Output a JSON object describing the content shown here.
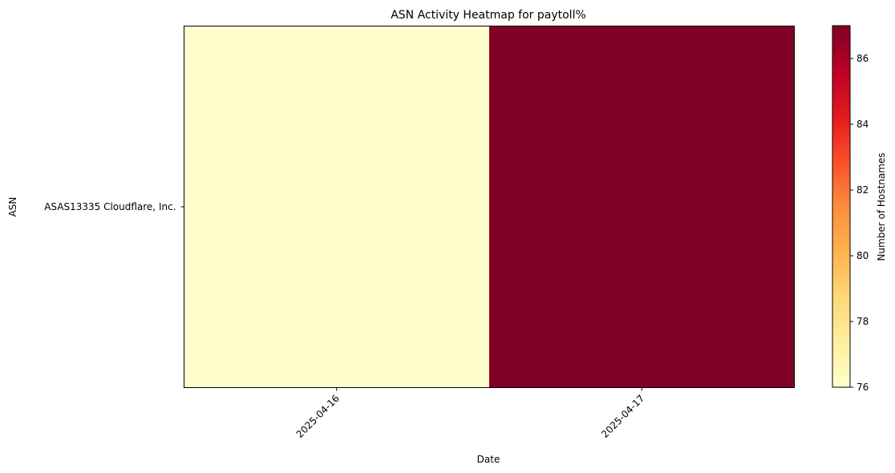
{
  "chart_data": {
    "type": "heatmap",
    "title": "ASN Activity Heatmap for paytoll%",
    "xlabel": "Date",
    "ylabel": "ASN",
    "x_categories": [
      "2025-04-16",
      "2025-04-17"
    ],
    "y_categories": [
      "ASAS13335 Cloudflare, Inc."
    ],
    "values": [
      [
        76,
        87
      ]
    ],
    "colorbar": {
      "label": "Number of Hostnames",
      "range": [
        76,
        87
      ],
      "ticks": [
        76,
        78,
        80,
        82,
        84,
        86
      ],
      "colormap": "YlOrRd",
      "low_color": "#ffffcc",
      "high_color": "#800026"
    },
    "x_tick_rotation": "45 degrees"
  }
}
